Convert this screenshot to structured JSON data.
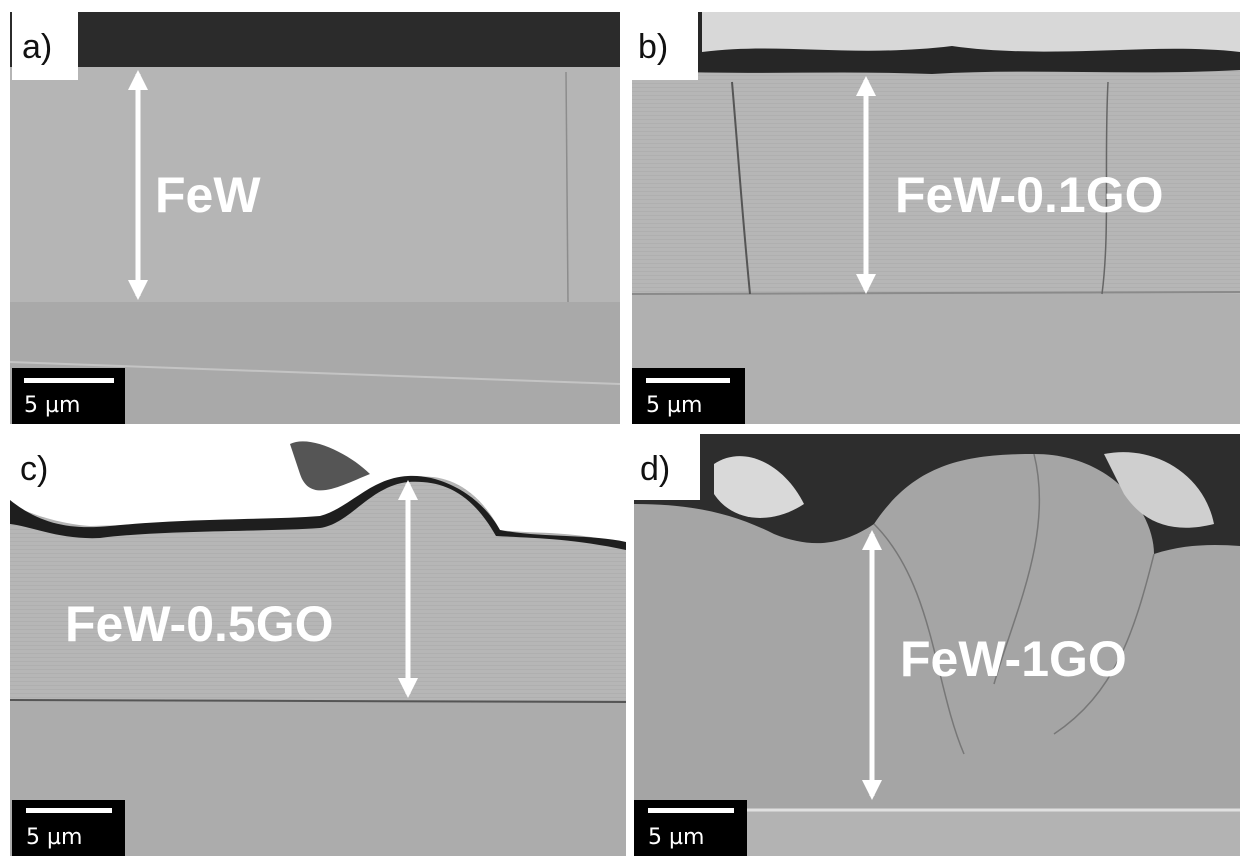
{
  "panels": [
    {
      "letter": "a)",
      "sample": "FeW",
      "scale_bar": "5 µm"
    },
    {
      "letter": "b)",
      "sample": "FeW-0.1GO",
      "scale_bar": "5 µm"
    },
    {
      "letter": "c)",
      "sample": "FeW-0.5GO",
      "scale_bar": "5 µm"
    },
    {
      "letter": "d)",
      "sample": "FeW-1GO",
      "scale_bar": "5 µm"
    }
  ]
}
